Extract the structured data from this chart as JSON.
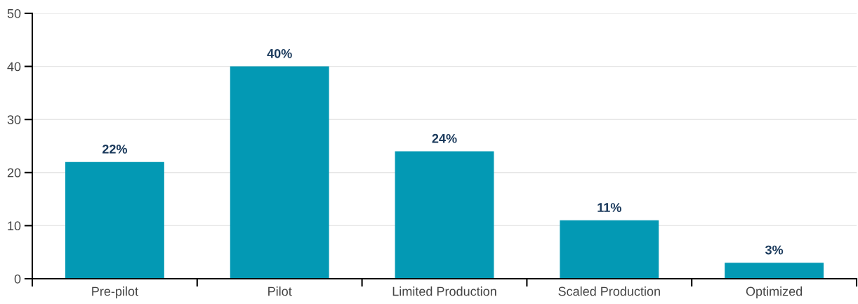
{
  "chart_data": {
    "type": "bar",
    "categories": [
      "Pre-pilot",
      "Pilot",
      "Limited Production",
      "Scaled Production",
      "Optimized"
    ],
    "values": [
      22,
      40,
      24,
      11,
      3
    ],
    "value_labels": [
      "22%",
      "40%",
      "24%",
      "11%",
      "3%"
    ],
    "color": "#0399b4",
    "ylim": [
      0,
      50
    ],
    "yticks": [
      0,
      10,
      20,
      30,
      40,
      50
    ],
    "grid": "y",
    "legend": false
  }
}
